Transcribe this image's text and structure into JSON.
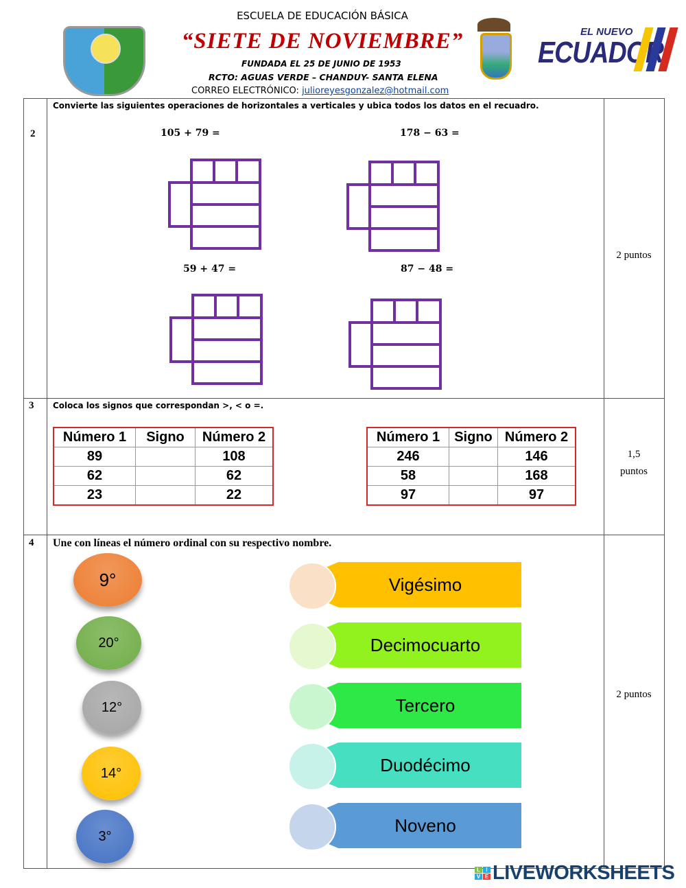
{
  "header": {
    "school_type": "ESCUELA DE EDUCACIÓN BÁSICA",
    "school_name": "“SIETE DE NOVIEMBRE”",
    "founded": "FUNDADA EL 25 DE JUNIO DE 1953",
    "location": "RCTO: AGUAS VERDE – CHANDUY-  SANTA ELENA",
    "email_label": "CORREO ELECTRÓNICO: ",
    "email": "julioreyesgonzalez@hotmail.com",
    "logo_top": "EL NUEVO",
    "logo_main": "ECUADOR"
  },
  "q2": {
    "number": "2",
    "instruction": "Convierte las siguientes operaciones de horizontales a verticales y ubica todos los datos en el recuadro.",
    "operations": [
      "105 + 79 =",
      "178 − 63 =",
      "59 + 47 =",
      "87 − 48 ="
    ],
    "points": "2 puntos",
    "grid_color": "#7030a0"
  },
  "q3": {
    "number": "3",
    "instruction": "Coloca los signos que correspondan >,  <  o  =.",
    "headers": [
      "Número 1",
      "Signo",
      "Número 2"
    ],
    "table1": [
      [
        "89",
        "",
        "108"
      ],
      [
        "62",
        "",
        "62"
      ],
      [
        "23",
        "",
        "22"
      ]
    ],
    "table2": [
      [
        "246",
        "",
        "146"
      ],
      [
        "58",
        "",
        "168"
      ],
      [
        "97",
        "",
        "97"
      ]
    ],
    "points_line1": "1,5",
    "points_line2": "puntos"
  },
  "q4": {
    "number": "4",
    "instruction": "Une con líneas el número ordinal con su respectivo nombre.",
    "ordinals": [
      {
        "label": "9°",
        "color": "#ed7d31"
      },
      {
        "label": "20°",
        "color": "#70ad47"
      },
      {
        "label": "12°",
        "color": "#a5a5a5"
      },
      {
        "label": "14°",
        "color": "#ffc000"
      },
      {
        "label": "3°",
        "color": "#4472c4"
      }
    ],
    "names": [
      {
        "label": "Vigésimo",
        "color": "#ffc000",
        "light": "#fbe0c8"
      },
      {
        "label": "Decimocuarto",
        "color": "#92f21d",
        "light": "#e6f8cf"
      },
      {
        "label": "Tercero",
        "color": "#2ee845",
        "light": "#c9f5cf"
      },
      {
        "label": "Duodécimo",
        "color": "#47dfc1",
        "light": "#c6f2ea"
      },
      {
        "label": "Noveno",
        "color": "#5b9bd5",
        "light": "#c5d6ec"
      }
    ],
    "points": "2 puntos"
  },
  "footer": {
    "brand": "LIVEWORKSHEETS",
    "badge": [
      "L",
      "I",
      "V",
      "E"
    ]
  }
}
